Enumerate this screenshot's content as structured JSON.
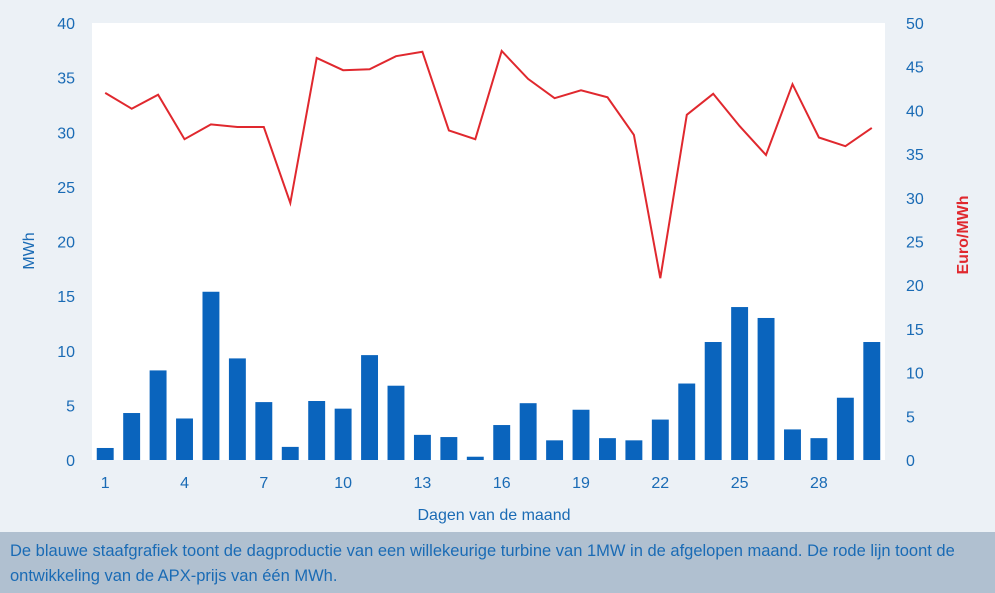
{
  "chart_data": {
    "type": "bar+line",
    "title": "",
    "xlabel": "Dagen van de maand",
    "ylabel_left": "MWh",
    "ylabel_right": "Euro/MWh",
    "x": [
      1,
      2,
      3,
      4,
      5,
      6,
      7,
      8,
      9,
      10,
      11,
      12,
      13,
      14,
      15,
      16,
      17,
      18,
      19,
      20,
      21,
      22,
      23,
      24,
      25,
      26,
      27,
      28,
      29,
      30
    ],
    "x_tick_labels": [
      "1",
      "4",
      "7",
      "10",
      "13",
      "16",
      "19",
      "22",
      "25",
      "28"
    ],
    "y_left_ticks": [
      "0",
      "5",
      "10",
      "15",
      "20",
      "25",
      "30",
      "35",
      "40"
    ],
    "y_right_ticks": [
      "0",
      "5",
      "10",
      "15",
      "20",
      "25",
      "30",
      "35",
      "40",
      "45",
      "50"
    ],
    "ylim_left": [
      0,
      40
    ],
    "ylim_right": [
      0,
      50
    ],
    "grid": false,
    "series": [
      {
        "type": "bar",
        "axis": "left",
        "color": "#0a64bd",
        "values": [
          1.1,
          4.3,
          8.2,
          3.8,
          15.4,
          9.3,
          5.3,
          1.2,
          5.4,
          4.7,
          9.6,
          6.8,
          2.3,
          2.1,
          0.3,
          3.2,
          5.2,
          1.8,
          4.6,
          2.0,
          1.8,
          3.7,
          7.0,
          10.8,
          14.0,
          13.0,
          2.8,
          2.0,
          5.7,
          10.8
        ]
      },
      {
        "type": "line",
        "axis": "right",
        "color": "#e0282e",
        "values": [
          42.0,
          40.2,
          41.8,
          36.7,
          38.4,
          38.1,
          38.1,
          29.4,
          46.0,
          44.6,
          44.7,
          46.2,
          46.7,
          37.7,
          36.7,
          46.8,
          43.6,
          41.4,
          42.3,
          41.5,
          37.2,
          20.8,
          39.5,
          41.9,
          38.2,
          34.9,
          43.0,
          36.9,
          35.9,
          38.0
        ]
      }
    ]
  },
  "caption": "De blauwe staafgrafiek toont de dagproductie van een willekeurige turbine van 1MW in de afgelopen maand. De rode lijn toont de ontwikkeling van de APX-prijs van één MWh."
}
